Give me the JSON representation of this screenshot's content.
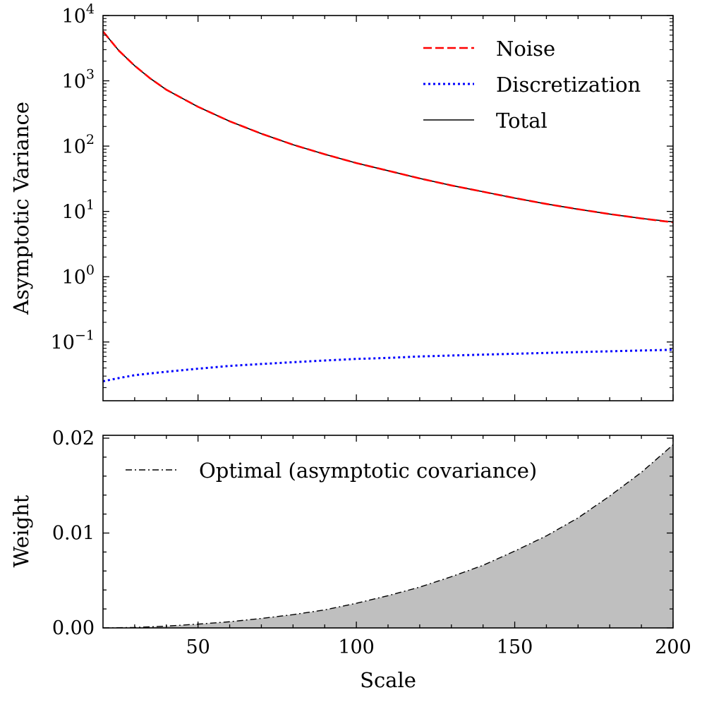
{
  "chart_data": [
    {
      "type": "line",
      "id": "variance_panel",
      "title": "",
      "xlabel": "",
      "ylabel": "Asymptotic Variance",
      "yscale": "log",
      "xlim": [
        20,
        200
      ],
      "ylim_exp": [
        -1.9,
        4
      ],
      "x_ticks": [
        50,
        100,
        150,
        200
      ],
      "y_ticks": [
        {
          "base": "10",
          "exp": "4",
          "value_exp": 4
        },
        {
          "base": "10",
          "exp": "3",
          "value_exp": 3
        },
        {
          "base": "10",
          "exp": "2",
          "value_exp": 2
        },
        {
          "base": "10",
          "exp": "1",
          "value_exp": 1
        },
        {
          "base": "10",
          "exp": "0",
          "value_exp": 0
        },
        {
          "base": "10",
          "exp": "−1",
          "value_exp": -1
        }
      ],
      "legend_position": "top-right",
      "series": [
        {
          "name": "Noise",
          "color": "#ff0000",
          "style": "dashed",
          "x": [
            20,
            25,
            30,
            35,
            40,
            50,
            60,
            70,
            80,
            90,
            100,
            110,
            120,
            130,
            140,
            150,
            160,
            170,
            180,
            190,
            200
          ],
          "y": [
            5700,
            2900,
            1700,
            1080,
            730,
            400,
            240,
            155,
            105,
            75,
            55,
            42,
            32,
            25,
            20,
            16,
            13,
            10.8,
            9.1,
            7.8,
            6.8
          ]
        },
        {
          "name": "Discretization",
          "color": "#0000ff",
          "style": "dotted",
          "x": [
            20,
            25,
            30,
            35,
            40,
            50,
            60,
            70,
            80,
            90,
            100,
            110,
            120,
            130,
            140,
            150,
            160,
            170,
            180,
            190,
            200
          ],
          "y": [
            0.025,
            0.028,
            0.031,
            0.033,
            0.035,
            0.039,
            0.043,
            0.046,
            0.049,
            0.052,
            0.055,
            0.057,
            0.06,
            0.062,
            0.064,
            0.066,
            0.068,
            0.07,
            0.072,
            0.074,
            0.076
          ]
        },
        {
          "name": "Total",
          "color": "#000000",
          "style": "solid",
          "x": [
            20,
            25,
            30,
            35,
            40,
            50,
            60,
            70,
            80,
            90,
            100,
            110,
            120,
            130,
            140,
            150,
            160,
            170,
            180,
            190,
            200
          ],
          "y": [
            5700,
            2900,
            1700,
            1080,
            730,
            400,
            240,
            155,
            105,
            75,
            55,
            42,
            32,
            25,
            20,
            16,
            13,
            10.8,
            9.1,
            7.8,
            6.9
          ]
        }
      ]
    },
    {
      "type": "area",
      "id": "weight_panel",
      "title": "",
      "xlabel": "Scale",
      "ylabel": "Weight",
      "xlim": [
        20,
        200
      ],
      "ylim": [
        0,
        0.0203
      ],
      "x_ticks": [
        50,
        100,
        150,
        200
      ],
      "y_ticks": [
        {
          "value": 0,
          "label": "0.00"
        },
        {
          "value": 0.01,
          "label": "0.01"
        },
        {
          "value": 0.02,
          "label": "0.02"
        }
      ],
      "fill_color": "#bfbfbf",
      "legend_position": "top-left",
      "series": [
        {
          "name": "Optimal (asymptotic covariance)",
          "color": "#000000",
          "style": "dashdot",
          "x": [
            20,
            30,
            40,
            50,
            60,
            70,
            80,
            90,
            100,
            110,
            120,
            130,
            140,
            150,
            160,
            170,
            180,
            190,
            200
          ],
          "y": [
            0.0,
            5e-05,
            0.00019,
            0.0004,
            0.00065,
            0.001,
            0.0014,
            0.0019,
            0.0026,
            0.0034,
            0.0043,
            0.0054,
            0.0066,
            0.0081,
            0.0097,
            0.0116,
            0.0139,
            0.0164,
            0.0193
          ]
        }
      ]
    }
  ]
}
